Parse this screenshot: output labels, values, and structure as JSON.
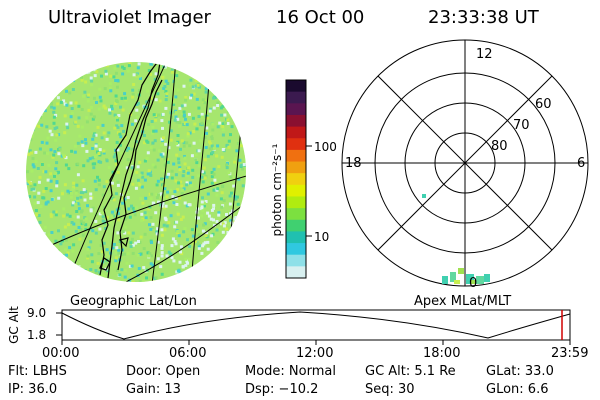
{
  "header": {
    "instrument": "Ultraviolet Imager",
    "date": "16 Oct 00",
    "time": "23:33:38 UT"
  },
  "colorbar": {
    "unit_label": "photon cm⁻²s⁻¹",
    "ticks": [
      "100",
      "10"
    ],
    "colors": [
      "#1a0a2e",
      "#3b1a4f",
      "#5a1550",
      "#8a1030",
      "#c01818",
      "#e03010",
      "#f07010",
      "#f0a010",
      "#f0d010",
      "#e0f000",
      "#b0ec10",
      "#7ce040",
      "#40d070",
      "#20c0b0",
      "#30c8e0",
      "#8ee0e8",
      "#d8f0f0"
    ]
  },
  "image_panel": {
    "label": "Geographic Lat/Lon",
    "palette": [
      "#c8ee50",
      "#90e070",
      "#60d6a0",
      "#48d0c8",
      "#a8ee68",
      "#dcf4f0",
      "#50d890"
    ]
  },
  "polar_plot": {
    "label": "Apex MLat/MLT",
    "mlt_labels": {
      "top": "12",
      "left": "18",
      "right": "6",
      "bottom": "0"
    },
    "lat_labels": [
      "80",
      "70",
      "60"
    ]
  },
  "altitude_strip": {
    "y_title": "GC Alt",
    "y_ticks": [
      "9.0",
      "1.8"
    ],
    "x_ticks": [
      "00:00",
      "06:00",
      "12:00",
      "18:00",
      "23:59"
    ],
    "marker_color": "#d00000"
  },
  "status": {
    "flt": "Flt: LBHS",
    "door": "Door: Open",
    "mode": "Mode: Normal",
    "gc_alt": "GC Alt: 5.1 Re",
    "glat": "GLat:  33.0",
    "ip": "IP: 36.0",
    "gain": "Gain: 13",
    "dsp": "Dsp:  −10.2",
    "seq": "Seq: 30",
    "glon": "GLon:   6.6"
  }
}
